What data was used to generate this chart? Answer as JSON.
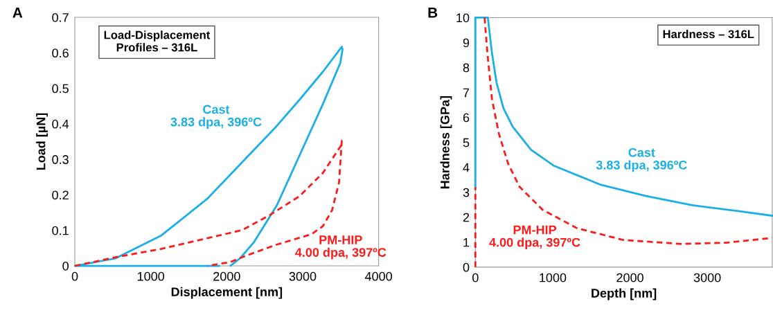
{
  "chart_data": [
    {
      "type": "line",
      "title": "Load-Displacement\nProfiles – 316L",
      "xlabel": "Displacement [nm]",
      "ylabel": "Load [µN]",
      "annotations": [
        "A"
      ],
      "xlim": [
        0,
        4000
      ],
      "ylim": [
        0,
        0.7
      ],
      "xticks": [
        0,
        1000,
        2000,
        3000,
        4000
      ],
      "yticks": [
        0,
        0.1,
        0.2,
        0.3,
        0.4,
        0.5,
        0.6,
        0.7
      ],
      "grid": false,
      "legend": false,
      "series": [
        {
          "name": "Cast\n3.83 dpa, 396ºC",
          "color": "#1aafe6",
          "line_style": "solid",
          "x": [
            1900,
            1000,
            0,
            534,
            1141,
            1749,
            2356,
            2659,
            2963,
            3267,
            3515,
            3525,
            3496,
            3267,
            2963,
            2659,
            2356,
            2174,
            2053
          ],
          "values": [
            0,
            0,
            0,
            0.021,
            0.086,
            0.19,
            0.326,
            0.394,
            0.469,
            0.547,
            0.617,
            0.61,
            0.572,
            0.456,
            0.313,
            0.17,
            0.066,
            0.021,
            0.001
          ]
        },
        {
          "name": "PM-HIP\n4.00 dpa, 397ºC",
          "color": "#ff1a1a",
          "line_style": "dashed",
          "x": [
            0,
            534,
            1141,
            1749,
            2205,
            2568,
            2963,
            3267,
            3500,
            3515,
            3479,
            3388,
            3267,
            3115,
            2659,
            2234,
            2053,
            1749
          ],
          "values": [
            0,
            0.024,
            0.048,
            0.078,
            0.101,
            0.143,
            0.197,
            0.262,
            0.337,
            0.352,
            0.235,
            0.157,
            0.112,
            0.089,
            0.06,
            0.027,
            0.011,
            0
          ]
        }
      ]
    },
    {
      "type": "line",
      "title": "Hardness – 316L",
      "xlabel": "Depth [nm]",
      "ylabel": "Hardness [GPa]",
      "annotations": [
        "B"
      ],
      "xlim": [
        0,
        3840
      ],
      "ylim": [
        0,
        10
      ],
      "xticks": [
        0,
        1000,
        2000,
        3000
      ],
      "yticks": [
        0,
        1,
        2,
        3,
        4,
        5,
        6,
        7,
        8,
        9,
        10
      ],
      "grid": false,
      "legend": false,
      "series": [
        {
          "name": "Cast\n3.83 dpa, 396ºC",
          "color": "#1aafe6",
          "line_style": "solid",
          "x": [
            0,
            0,
            161,
            214,
            274,
            363,
            482,
            720,
            1018,
            1613,
            2208,
            2804,
            3399,
            3839
          ],
          "values": [
            3.2,
            10,
            10,
            8.59,
            7.39,
            6.37,
            5.63,
            4.7,
            4.06,
            3.31,
            2.85,
            2.48,
            2.25,
            2.06
          ]
        },
        {
          "name": "PM-HIP\n4.00 dpa, 397ºC",
          "color": "#ff1a1a",
          "line_style": "dashed",
          "x": [
            0,
            0,
            60,
            119,
            155,
            214,
            304,
            423,
            571,
            869,
            1315,
            1911,
            2655,
            3250,
            3839
          ],
          "values": [
            0,
            3.2,
            null,
            10,
            8.59,
            6.74,
            5.35,
            4.15,
            3.22,
            2.3,
            1.56,
            1.09,
            0.93,
            0.98,
            1.17
          ]
        }
      ]
    }
  ]
}
